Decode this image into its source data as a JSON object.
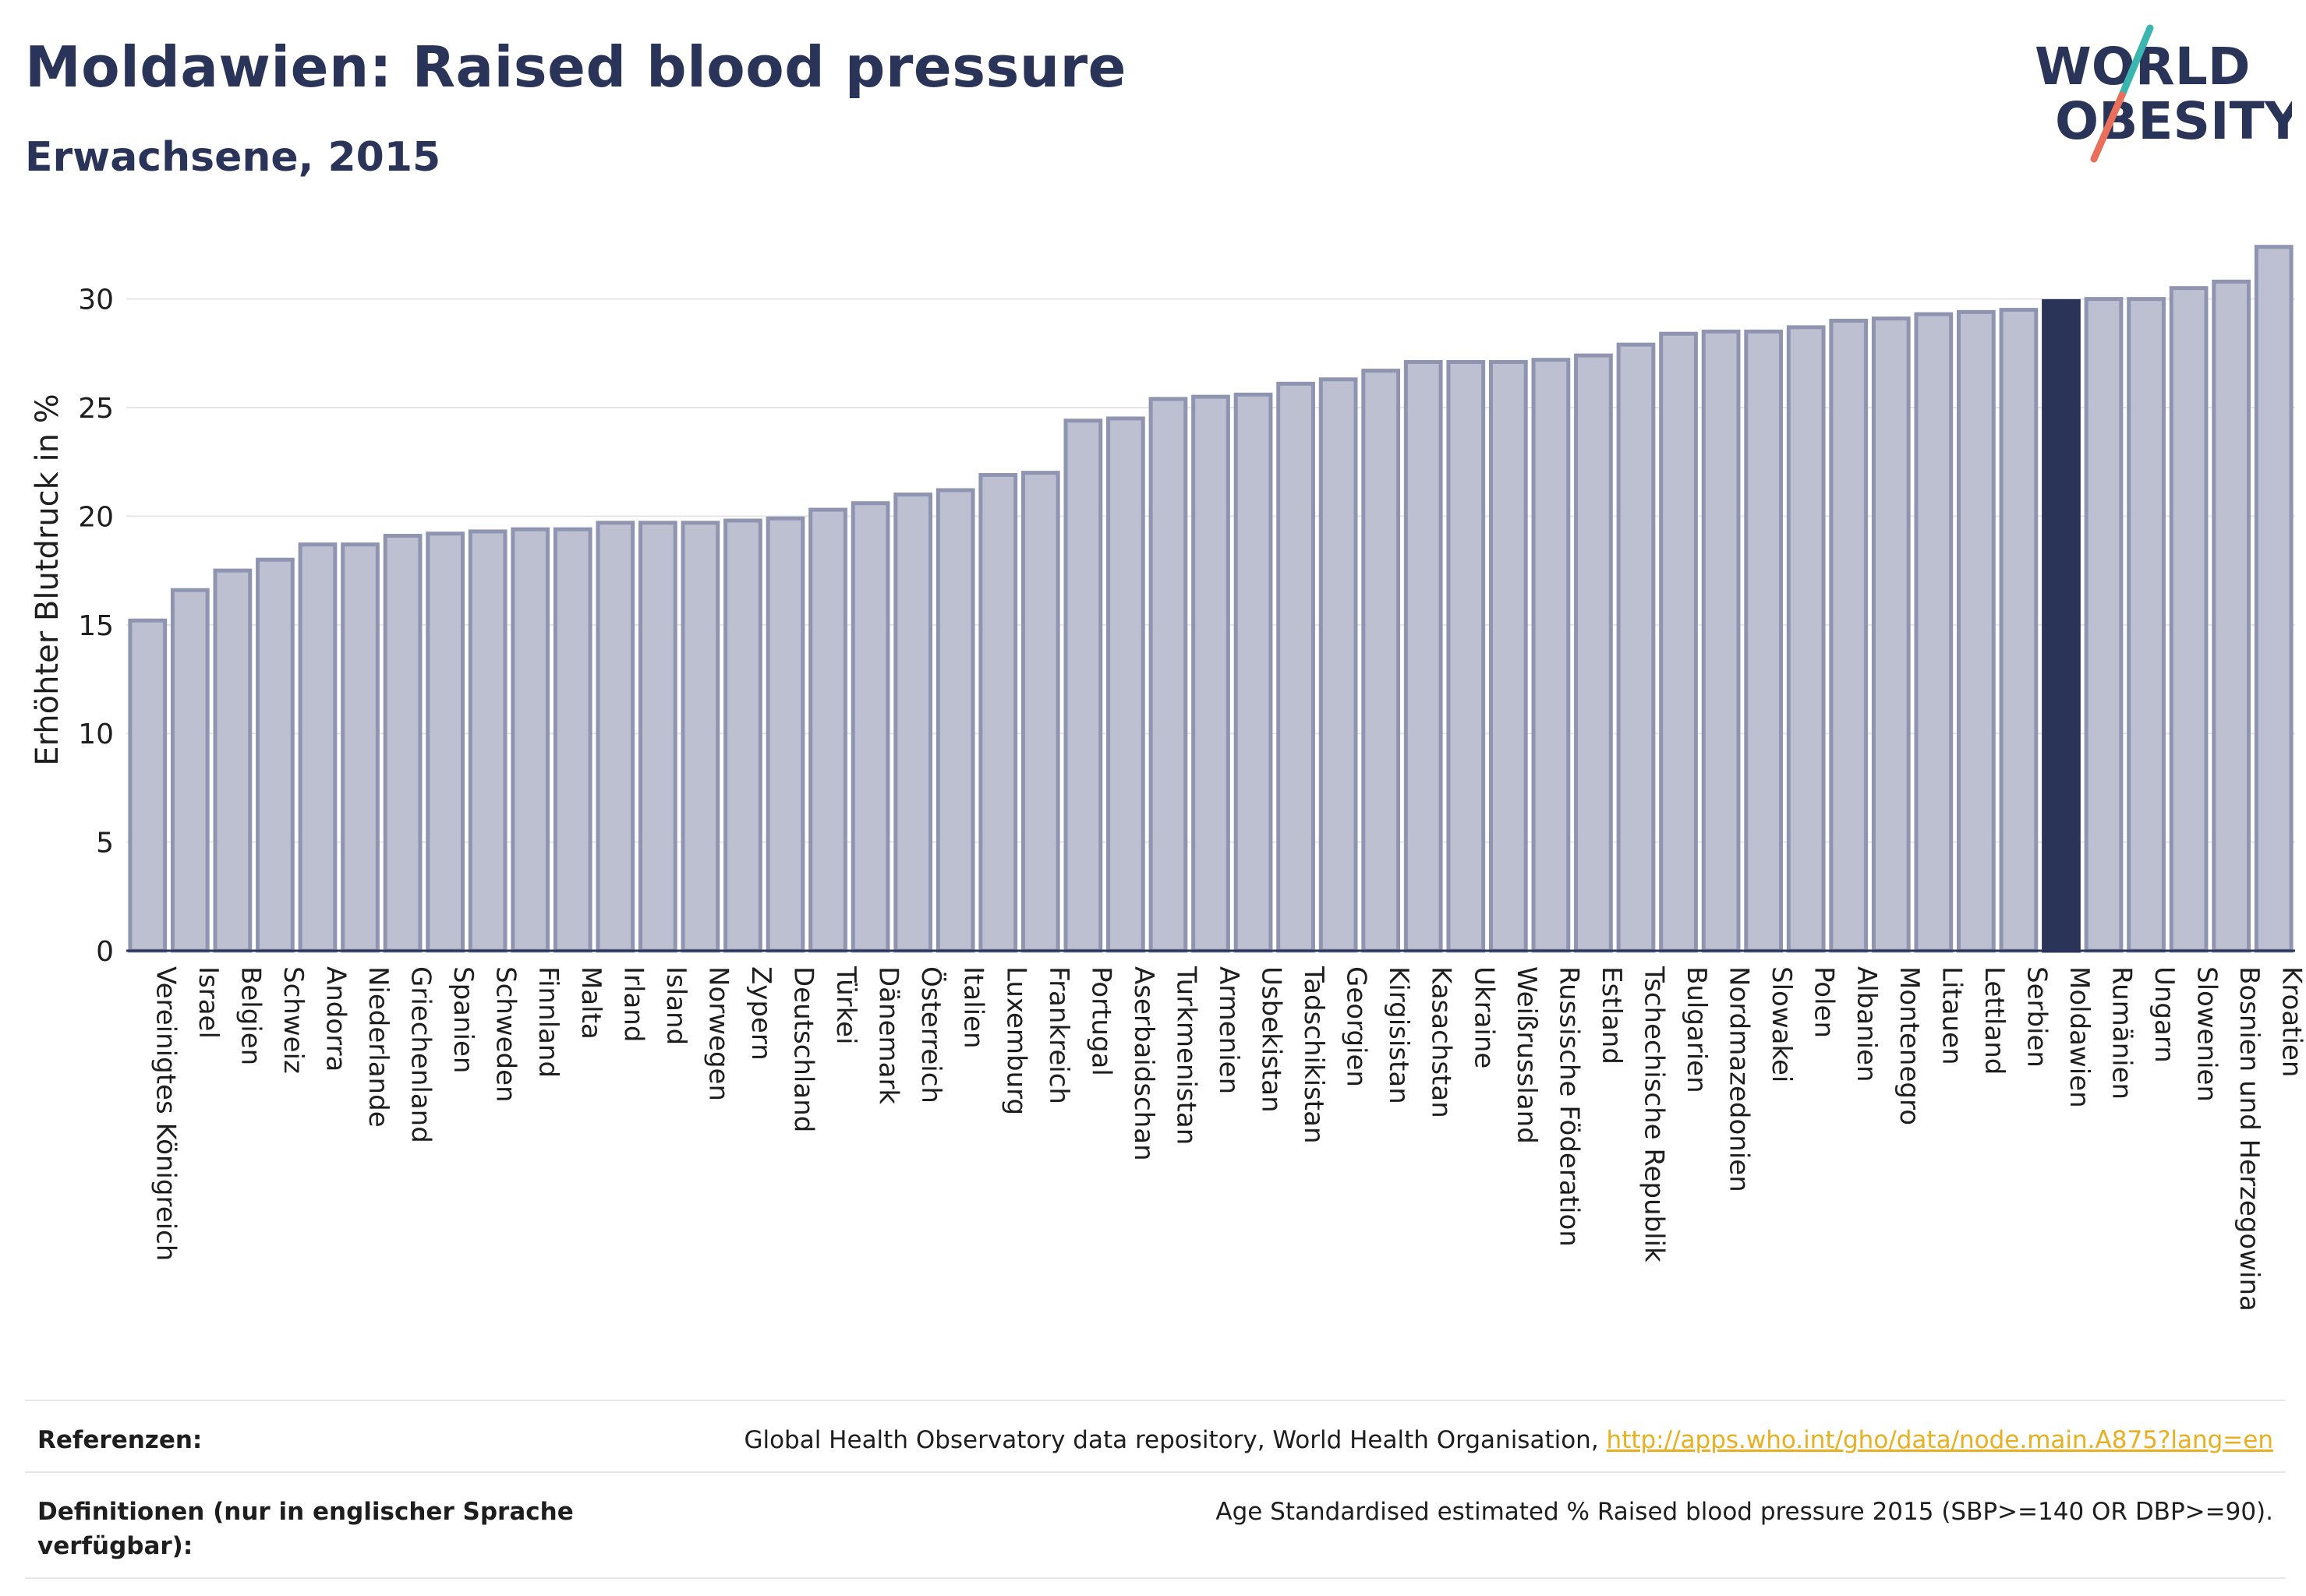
{
  "header": {
    "title": "Moldawien: Raised blood pressure",
    "subtitle": "Erwachsene, 2015"
  },
  "logo": {
    "line1": "WORLD",
    "line2": "OBESITY"
  },
  "colors": {
    "bar_fill": "#bcc0d0",
    "bar_stroke": "#8f95b0",
    "highlight": "#2a3358",
    "grid": "#e6e6ea",
    "axis": "#2a3358",
    "logo_teal": "#3ab5b0",
    "logo_coral": "#e8705a"
  },
  "chart_data": {
    "type": "bar",
    "ylabel": "Erhöhter Blutdruck in %",
    "ylim": [
      0,
      33
    ],
    "yticks": [
      0,
      5,
      10,
      15,
      20,
      25,
      30
    ],
    "highlight": "Moldawien",
    "categories": [
      "Vereinigtes Königreich",
      "Israel",
      "Belgien",
      "Schweiz",
      "Andorra",
      "Niederlande",
      "Griechenland",
      "Spanien",
      "Schweden",
      "Finnland",
      "Malta",
      "Irland",
      "Island",
      "Norwegen",
      "Zypern",
      "Deutschland",
      "Türkei",
      "Dänemark",
      "Österreich",
      "Italien",
      "Luxemburg",
      "Frankreich",
      "Portugal",
      "Aserbaidschan",
      "Turkmenistan",
      "Armenien",
      "Usbekistan",
      "Tadschikistan",
      "Georgien",
      "Kirgisistan",
      "Kasachstan",
      "Ukraine",
      "Weißrussland",
      "Russische Föderation",
      "Estland",
      "Tschechische Republik",
      "Bulgarien",
      "Nordmazedonien",
      "Slowakei",
      "Polen",
      "Albanien",
      "Montenegro",
      "Litauen",
      "Lettland",
      "Serbien",
      "Moldawien",
      "Rumänien",
      "Ungarn",
      "Slowenien",
      "Bosnien und Herzegowina",
      "Kroatien"
    ],
    "values": [
      15.2,
      16.6,
      17.5,
      18.0,
      18.7,
      18.7,
      19.1,
      19.2,
      19.3,
      19.4,
      19.4,
      19.7,
      19.7,
      19.7,
      19.8,
      19.9,
      20.3,
      20.6,
      21.0,
      21.2,
      21.9,
      22.0,
      24.4,
      24.5,
      25.4,
      25.5,
      25.6,
      26.1,
      26.3,
      26.7,
      27.1,
      27.1,
      27.1,
      27.2,
      27.4,
      27.9,
      28.4,
      28.5,
      28.5,
      28.7,
      29.0,
      29.1,
      29.3,
      29.4,
      29.5,
      29.9,
      30.0,
      30.0,
      30.5,
      30.8,
      32.4
    ]
  },
  "footer": {
    "references_label": "Referenzen:",
    "references_text": "Global Health Observatory data repository, World Health Organisation, ",
    "references_link": "http://apps.who.int/gho/data/node.main.A875?lang=en",
    "definitions_label": "Definitionen (nur in englischer Sprache verfügbar):",
    "definitions_text": "Age Standardised estimated % Raised blood pressure 2015 (SBP>=140 OR DBP>=90)."
  }
}
